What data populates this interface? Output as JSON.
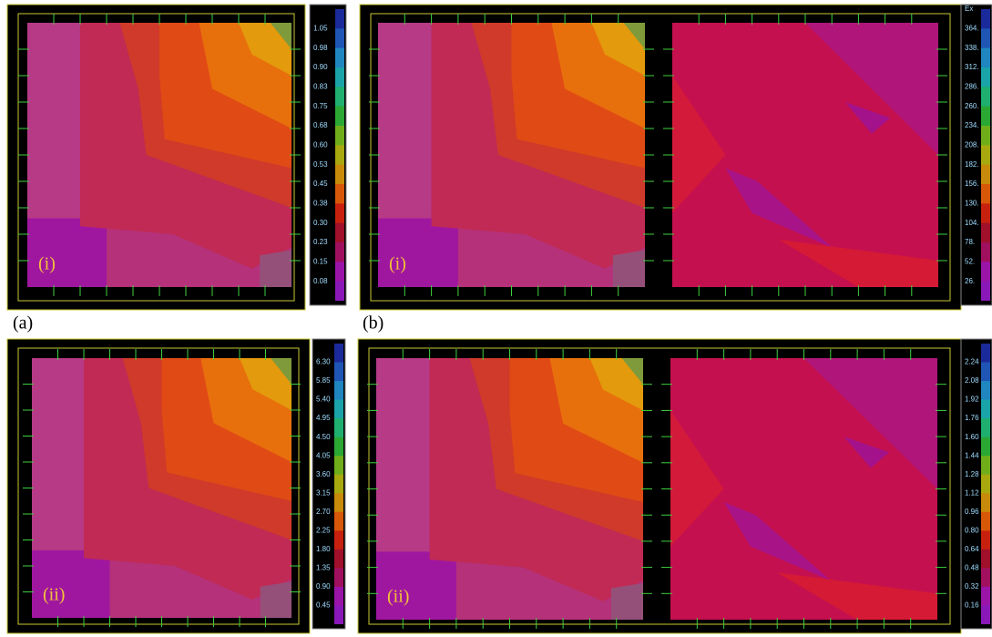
{
  "captions": [
    "(a)",
    "(b)"
  ],
  "panels": [
    {
      "tag": "(i)",
      "legend": [
        "1.05",
        "0.98",
        "0.90",
        "0.83",
        "0.75",
        "0.68",
        "0.60",
        "0.53",
        "0.45",
        "0.38",
        "0.30",
        "0.23",
        "0.15",
        "0.08"
      ]
    },
    {
      "tag": "(i)",
      "legend_title": "Ex",
      "legend": [
        "364.",
        "338.",
        "312.",
        "286.",
        "260.",
        "234.",
        "208.",
        "182.",
        "156.",
        "130.",
        "104.",
        "78.",
        "52.",
        "26."
      ]
    },
    {
      "tag": "(ii)",
      "legend": [
        "6.30",
        "5.85",
        "5.40",
        "4.95",
        "4.50",
        "4.05",
        "3.60",
        "3.15",
        "2.70",
        "2.25",
        "1.80",
        "1.35",
        "0.90",
        "0.45"
      ]
    },
    {
      "tag": "(ii)",
      "legend": [
        "2.24",
        "2.08",
        "1.92",
        "1.76",
        "1.60",
        "1.44",
        "1.28",
        "1.12",
        "0.96",
        "0.80",
        "0.64",
        "0.48",
        "0.32",
        "0.16"
      ]
    }
  ]
}
